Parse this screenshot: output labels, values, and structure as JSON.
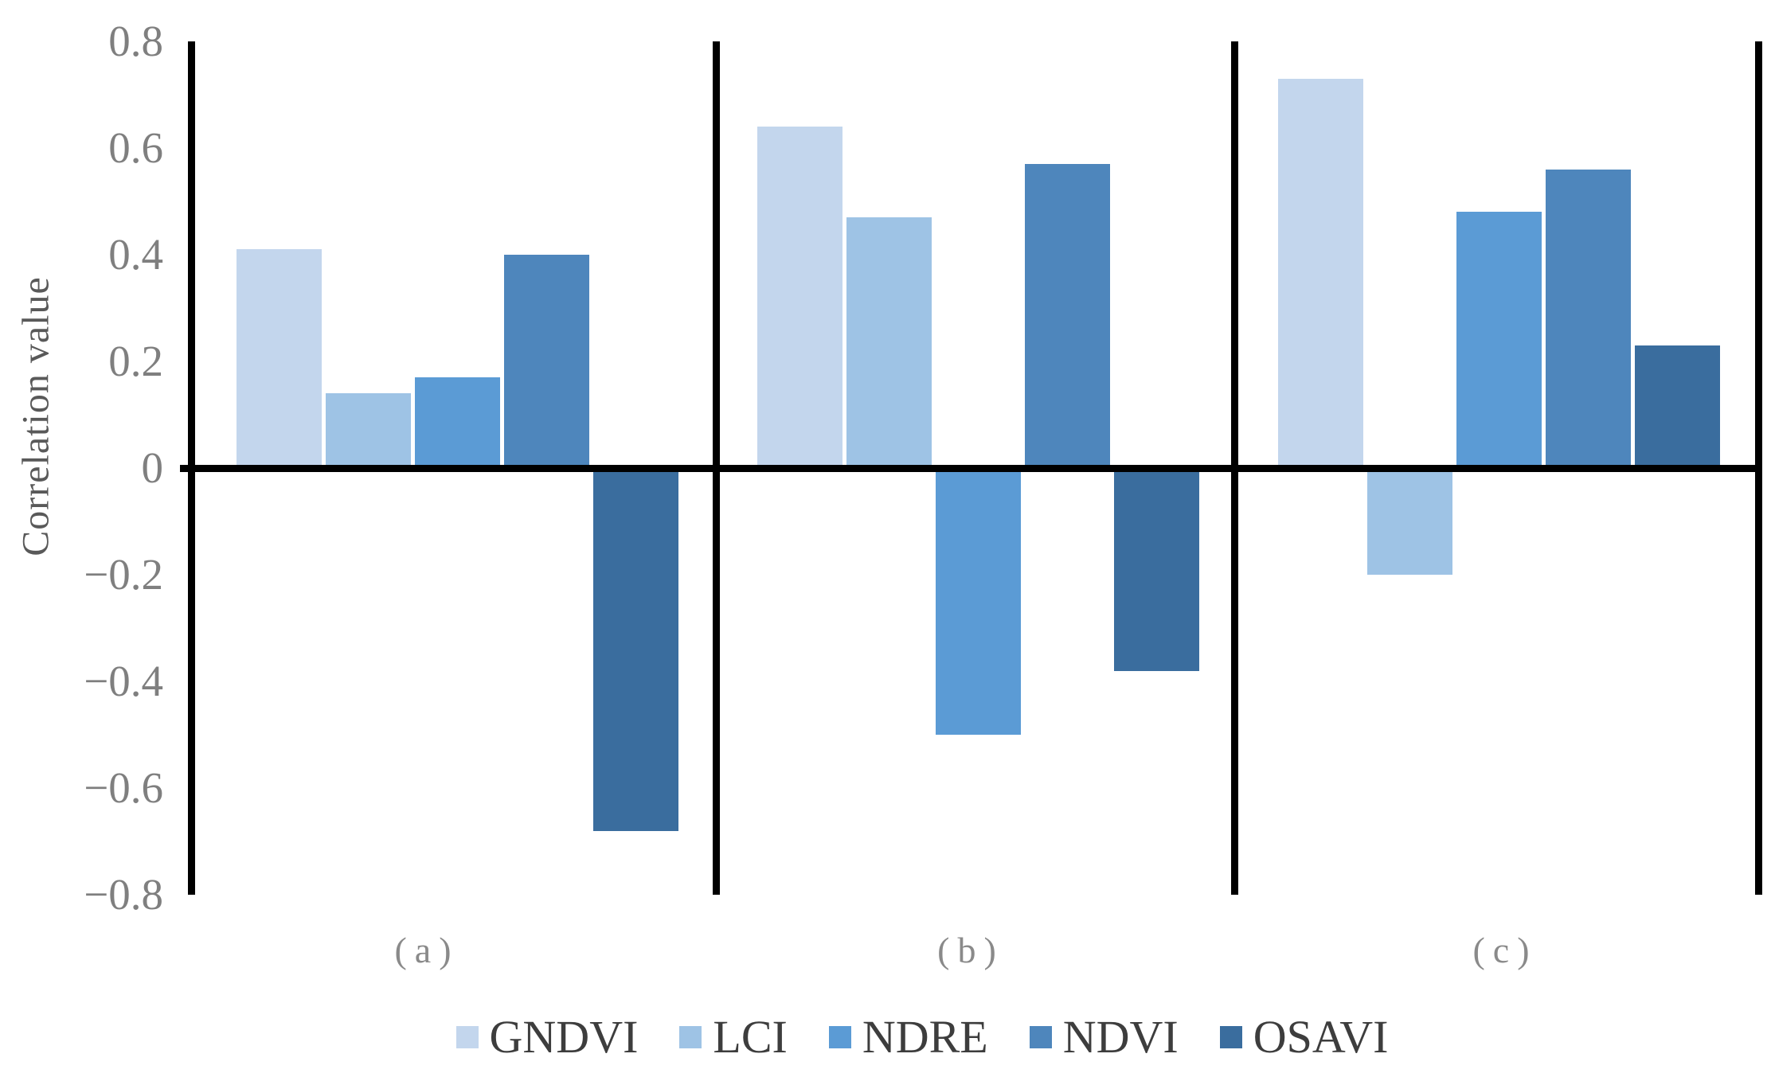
{
  "chart_data": {
    "type": "bar",
    "title": "",
    "ylabel": "Correlation value",
    "ylim": [
      -0.8,
      0.8
    ],
    "ytick_step": 0.2,
    "ytick_labels": [
      "0.8",
      "0.6",
      "0.4",
      "0.2",
      "0",
      "−0.2",
      "−0.4",
      "−0.6",
      "−0.8"
    ],
    "grid": false,
    "legend_position": "bottom",
    "categories": [
      "(a)",
      "(b)",
      "(c)"
    ],
    "series": [
      {
        "name": "GNDVI",
        "color": "#C3D6ED",
        "values": [
          0.41,
          0.64,
          0.73
        ]
      },
      {
        "name": "LCI",
        "color": "#9EC3E5",
        "values": [
          0.14,
          0.47,
          -0.2
        ]
      },
      {
        "name": "NDRE",
        "color": "#5B9BD5",
        "values": [
          0.17,
          -0.5,
          0.48
        ]
      },
      {
        "name": "NDVI",
        "color": "#4E86BC",
        "values": [
          0.4,
          0.57,
          0.56
        ]
      },
      {
        "name": "OSAVI",
        "color": "#3A6D9E",
        "values": [
          -0.68,
          -0.38,
          0.23
        ]
      }
    ]
  },
  "styles": {
    "axis_line_color": "#000000",
    "tick_text_color": "#7F7F7F",
    "axis_title_color": "#595959",
    "panel_label_color": "#8A8A8A",
    "legend_text_color": "#3D3D3D",
    "background": "#FFFFFF"
  }
}
